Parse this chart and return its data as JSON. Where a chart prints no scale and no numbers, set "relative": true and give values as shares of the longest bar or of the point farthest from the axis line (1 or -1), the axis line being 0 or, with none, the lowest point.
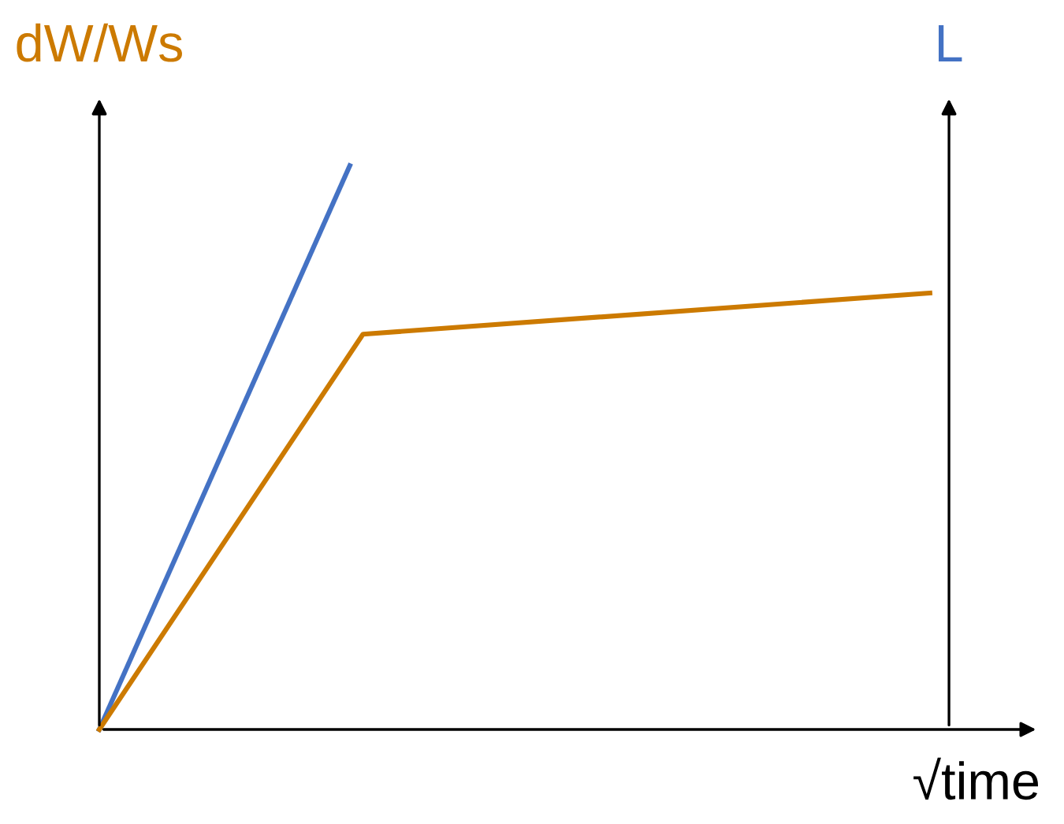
{
  "chart_data": {
    "type": "line",
    "relative": true,
    "ylabel": "dW/Ws",
    "y2label": "L",
    "xlabel": "√time",
    "marker": "none",
    "line_style": "solid",
    "categories": [
      null,
      null,
      null,
      null,
      null,
      null,
      null,
      null,
      null,
      null,
      null,
      null,
      null,
      null,
      null,
      null,
      null,
      null,
      null,
      null,
      null,
      null,
      null,
      null,
      null,
      null,
      null,
      null,
      null,
      null,
      null,
      null,
      null,
      null,
      null,
      null,
      null,
      null,
      null,
      null,
      null,
      null,
      null,
      null,
      null,
      null,
      null,
      null,
      null,
      null,
      null,
      null,
      null,
      null,
      null,
      null,
      null,
      null,
      null,
      null,
      null,
      null,
      null,
      null
    ],
    "series": [
      {
        "color": "#4472c4",
        "values": [
          0,
          null,
          null,
          null,
          null,
          null,
          null,
          null,
          null,
          null,
          null,
          null,
          null,
          null,
          null,
          null,
          null,
          null,
          null,
          1,
          null,
          null,
          null,
          null,
          null,
          null,
          null,
          null,
          null,
          null,
          null,
          null,
          null,
          null,
          null,
          null,
          null,
          null,
          null,
          null,
          null,
          null,
          null,
          null,
          null,
          null,
          null,
          null,
          null,
          null,
          null,
          null,
          null,
          null,
          null,
          null,
          null,
          null,
          null,
          null,
          null,
          null,
          null,
          null
        ]
      },
      {
        "color": "#cc7a00",
        "values": [
          0,
          null,
          null,
          null,
          null,
          null,
          null,
          null,
          null,
          null,
          null,
          null,
          null,
          null,
          null,
          null,
          null,
          null,
          null,
          null,
          0.701,
          null,
          null,
          null,
          null,
          null,
          null,
          null,
          null,
          null,
          null,
          null,
          null,
          null,
          null,
          null,
          null,
          null,
          null,
          null,
          null,
          null,
          null,
          null,
          null,
          null,
          null,
          null,
          null,
          null,
          null,
          null,
          null,
          null,
          null,
          null,
          null,
          null,
          null,
          null,
          null,
          null,
          null,
          0.774
        ]
      }
    ]
  }
}
